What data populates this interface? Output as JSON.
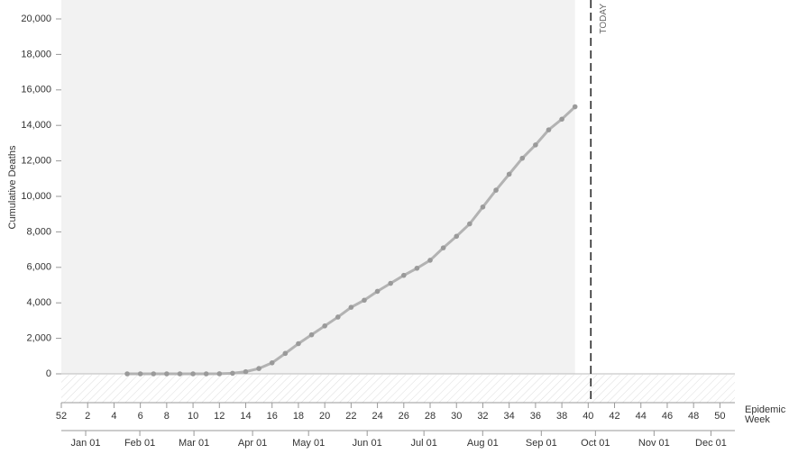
{
  "chart_data": {
    "type": "line",
    "y_label": "Cumulative Deaths",
    "x_label": "Epidemic Week",
    "annotation": "TODAY",
    "today": 40.2,
    "shaded_until": 39,
    "color": "#b3b3b3",
    "point_color": "#9a9a9a",
    "x": [
      5,
      6,
      7,
      8,
      9,
      10,
      11,
      12,
      13,
      14,
      15,
      16,
      17,
      18,
      19,
      20,
      21,
      22,
      23,
      24,
      25,
      26,
      27,
      28,
      29,
      30,
      31,
      32,
      33,
      34,
      35,
      36,
      37,
      38,
      39
    ],
    "values": [
      0,
      0,
      0,
      0,
      0,
      0,
      0,
      5,
      30,
      120,
      300,
      620,
      1150,
      1700,
      2200,
      2700,
      3200,
      3750,
      4150,
      4650,
      5100,
      5550,
      5950,
      6400,
      7100,
      7750,
      8450,
      9400,
      10350,
      11250,
      12150,
      12900,
      13750,
      14350,
      15050
    ],
    "xlim": [
      0,
      51
    ],
    "xticks": [
      {
        "value": 0,
        "label": "52"
      },
      2,
      4,
      6,
      8,
      10,
      12,
      14,
      16,
      18,
      20,
      22,
      24,
      26,
      28,
      30,
      32,
      34,
      36,
      38,
      40,
      42,
      44,
      46,
      48,
      50
    ],
    "month_ticks": [
      {
        "value": 1.85,
        "label": "Jan 01"
      },
      {
        "value": 5.96,
        "label": "Feb 01"
      },
      {
        "value": 10.07,
        "label": "Mar 01"
      },
      {
        "value": 14.52,
        "label": "Apr 01"
      },
      {
        "value": 18.77,
        "label": "May 01"
      },
      {
        "value": 23.22,
        "label": "Jun 01"
      },
      {
        "value": 27.53,
        "label": "Jul 01"
      },
      {
        "value": 31.99,
        "label": "Aug 01"
      },
      {
        "value": 36.44,
        "label": "Sep 01"
      },
      {
        "value": 40.55,
        "label": "Oct 01"
      },
      {
        "value": 45.0,
        "label": "Nov 01"
      },
      {
        "value": 49.32,
        "label": "Dec 01"
      }
    ],
    "ylim": [
      0,
      20000
    ],
    "yticks": [
      0,
      {
        "value": 2000,
        "label": "2,000"
      },
      {
        "value": 4000,
        "label": "4,000"
      },
      {
        "value": 6000,
        "label": "6,000"
      },
      {
        "value": 8000,
        "label": "8,000"
      },
      {
        "value": 10000,
        "label": "10,000"
      },
      {
        "value": 12000,
        "label": "12,000"
      },
      {
        "value": 14000,
        "label": "14,000"
      },
      {
        "value": 16000,
        "label": "16,000"
      },
      {
        "value": 18000,
        "label": "18,000"
      },
      {
        "value": 20000,
        "label": "20,000"
      }
    ]
  }
}
